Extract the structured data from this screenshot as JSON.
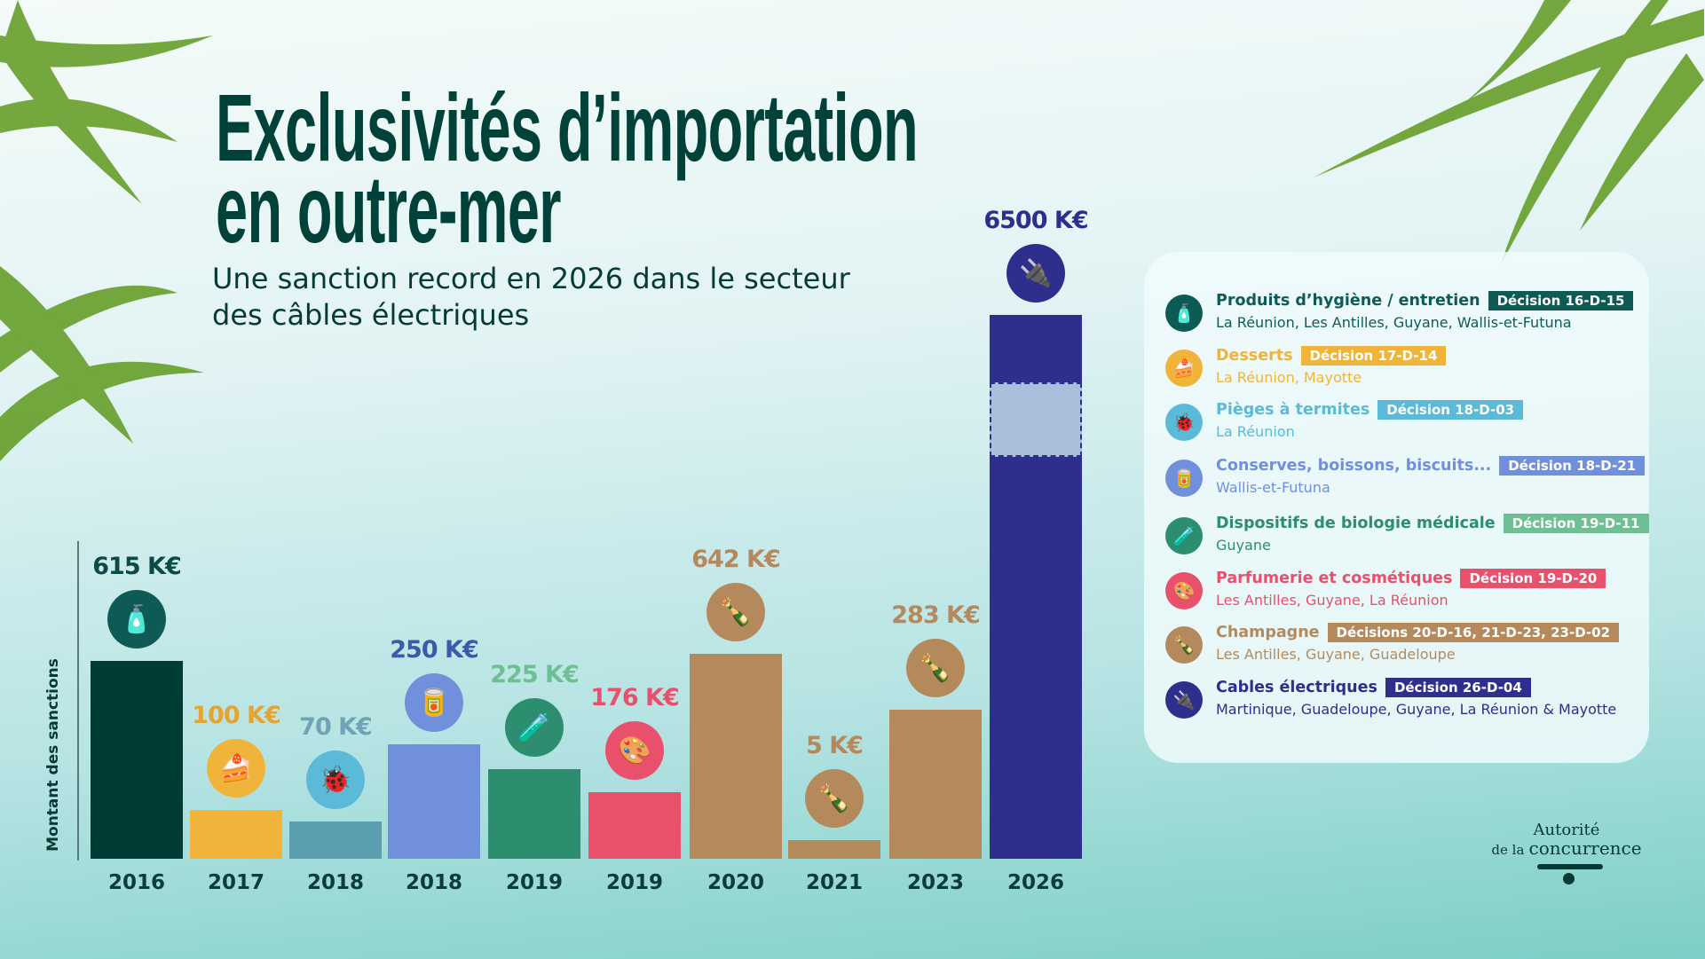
{
  "title": {
    "line1": "Exclusivités d’importation",
    "line2": "en outre-mer"
  },
  "subtitle": "Une sanction record en 2026 dans le secteur des câbles électriques",
  "chart_data": {
    "type": "bar",
    "ylabel": "Montant des sanctions",
    "unit": "K€",
    "categories": [
      "2016",
      "2017",
      "2018",
      "2018",
      "2019",
      "2019",
      "2020",
      "2021",
      "2023",
      "2026"
    ],
    "values": [
      615,
      100,
      70,
      250,
      225,
      176,
      642,
      5,
      283,
      6500
    ],
    "labels": [
      "615 K€",
      "100 K€",
      "70 K€",
      "250 K€",
      "225 K€",
      "176 K€",
      "642 K€",
      "5 K€",
      "283 K€",
      "6500 K€"
    ],
    "sectors": [
      "hygiene",
      "desserts",
      "termites",
      "conserves",
      "biologie",
      "parfumerie",
      "champagne",
      "champagne",
      "champagne",
      "cables"
    ],
    "bar_colors": [
      "#003c36",
      "#f0b43a",
      "#5a9fb0",
      "#7190db",
      "#2c8e6e",
      "#e9506c",
      "#b48a5d",
      "#b48a5d",
      "#b48a5d",
      "#2e2f8c"
    ],
    "label_colors": [
      "#0b4a48",
      "#e3a431",
      "#6fa3b5",
      "#3b5aa8",
      "#6cc093",
      "#e9506c",
      "#b48a5d",
      "#b48a5d",
      "#b48a5d",
      "#2e2f8c"
    ],
    "axis_break": "2026"
  },
  "legend": [
    {
      "title": "Produits d’hygiène / entretien",
      "decision": "Décision 16-D-15",
      "regions": "La Réunion, Les Antilles, Guyane, Wallis-et-Futuna",
      "color": "#0e5b55",
      "icon": "spray-bottle-icon",
      "glyph": "🧴"
    },
    {
      "title": "Desserts",
      "decision": "Décision 17-D-14",
      "regions": "La Réunion, Mayotte",
      "color": "#f0b43a",
      "icon": "dessert-icon",
      "glyph": "🍰"
    },
    {
      "title": "Pièges à termites",
      "decision": "Décision 18-D-03",
      "regions": "La Réunion",
      "color": "#5bbad8",
      "icon": "termite-icon",
      "glyph": "🐞"
    },
    {
      "title": "Conserves, boissons, biscuits...",
      "decision": "Décision 18-D-21",
      "regions": "Wallis-et-Futuna",
      "color": "#7190db",
      "icon": "can-icon",
      "glyph": "🥫"
    },
    {
      "title": "Dispositifs de biologie médicale",
      "decision": "Décision 19-D-11",
      "regions": "Guyane",
      "color": "#2c8e6e",
      "badge": "#6cc093",
      "icon": "test-tube-icon",
      "glyph": "🧪"
    },
    {
      "title": "Parfumerie et cosmétiques",
      "decision": "Décision 19-D-20",
      "regions": "Les Antilles, Guyane, La Réunion",
      "color": "#e9506c",
      "icon": "makeup-palette-icon",
      "glyph": "🎨"
    },
    {
      "title": "Champagne",
      "decision": "Décisions 20-D-16, 21-D-23, 23-D-02",
      "regions": "Les Antilles, Guyane, Guadeloupe",
      "color": "#b48a5d",
      "icon": "champagne-bottle-icon",
      "glyph": "🍾"
    },
    {
      "title": "Cables électriques",
      "decision": "Décision 26-D-04",
      "regions": "Martinique, Guadeloupe, Guyane, La Réunion & Mayotte",
      "color": "#2e2f8c",
      "icon": "electric-cable-icon",
      "glyph": "🔌"
    }
  ],
  "logo": {
    "line1": "Autorité",
    "line2a": "de la",
    "line2b": "concurrence"
  }
}
